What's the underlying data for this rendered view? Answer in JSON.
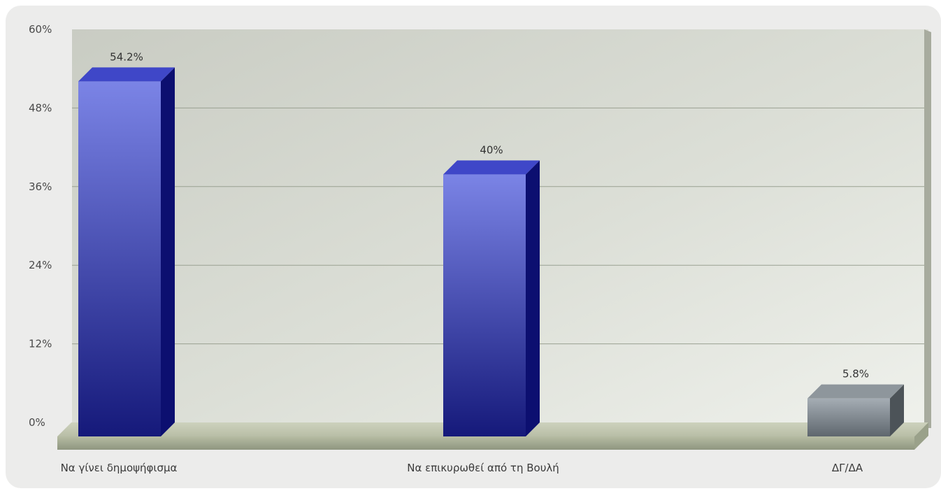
{
  "chart_data": {
    "type": "bar",
    "title": "",
    "xlabel": "",
    "ylabel": "",
    "categories": [
      "Να γίνει δημοψήφισμα",
      "Να επικυρωθεί από τη Βουλή",
      "ΔΓ/ΔΑ"
    ],
    "values": [
      54.2,
      40,
      5.8
    ],
    "value_labels": [
      "54.2%",
      "40%",
      "5.8%"
    ],
    "ylim": [
      0,
      60
    ],
    "yticks": [
      0,
      12,
      24,
      36,
      48,
      60
    ],
    "ytick_labels": [
      "0%",
      "12%",
      "24%",
      "36%",
      "48%",
      "60%"
    ],
    "grid": true,
    "legend": "none",
    "bar_colors": {
      "blue_front_top": "#7b84e6",
      "blue_front_bottom": "#15197a",
      "blue_side": "#0c0f70",
      "blue_top": "#3f47c8",
      "gray_front_top": "#a5adb4",
      "gray_front_bottom": "#5f676e",
      "gray_side": "#4c5358",
      "gray_top": "#8e969c"
    },
    "category_colors": [
      "blue",
      "blue",
      "gray"
    ]
  }
}
